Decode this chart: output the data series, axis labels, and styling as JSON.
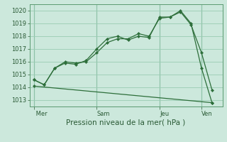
{
  "bg_color": "#cce8dc",
  "grid_color": "#99ccb3",
  "line_color": "#2d6e3a",
  "marker_color": "#2d6e3a",
  "xlabel_text": "Pression niveau de la mer( hPa )",
  "ylim": [
    1012.5,
    1020.5
  ],
  "yticks": [
    1013,
    1014,
    1015,
    1016,
    1017,
    1018,
    1019,
    1020
  ],
  "day_labels": [
    " Mer",
    "Sam",
    "Jeu",
    "Ven"
  ],
  "day_positions": [
    0,
    30,
    60,
    80
  ],
  "xlim": [
    -2,
    90
  ],
  "series1": {
    "x": [
      0,
      5,
      10,
      15,
      20,
      25,
      30,
      35,
      40,
      45,
      50,
      55,
      60,
      65,
      70,
      75,
      80,
      85
    ],
    "y": [
      1014.6,
      1014.2,
      1015.5,
      1016.0,
      1015.9,
      1016.0,
      1016.7,
      1017.5,
      1017.8,
      1017.8,
      1018.2,
      1018.0,
      1019.4,
      1019.5,
      1019.9,
      1018.9,
      1016.7,
      1013.8
    ]
  },
  "series2": {
    "x": [
      0,
      5,
      10,
      15,
      20,
      25,
      30,
      35,
      40,
      45,
      50,
      55,
      60,
      65,
      70,
      75,
      80,
      85
    ],
    "y": [
      1014.6,
      1014.2,
      1015.5,
      1015.9,
      1015.8,
      1016.1,
      1017.0,
      1017.8,
      1018.0,
      1017.7,
      1018.0,
      1017.9,
      1019.5,
      1019.5,
      1020.0,
      1019.0,
      1015.5,
      1012.8
    ]
  },
  "series3": {
    "x": [
      0,
      85
    ],
    "y": [
      1014.1,
      1012.8
    ]
  },
  "vlines_x": [
    0,
    30,
    60,
    80
  ],
  "tick_fontsize": 6,
  "xlabel_fontsize": 7.5
}
